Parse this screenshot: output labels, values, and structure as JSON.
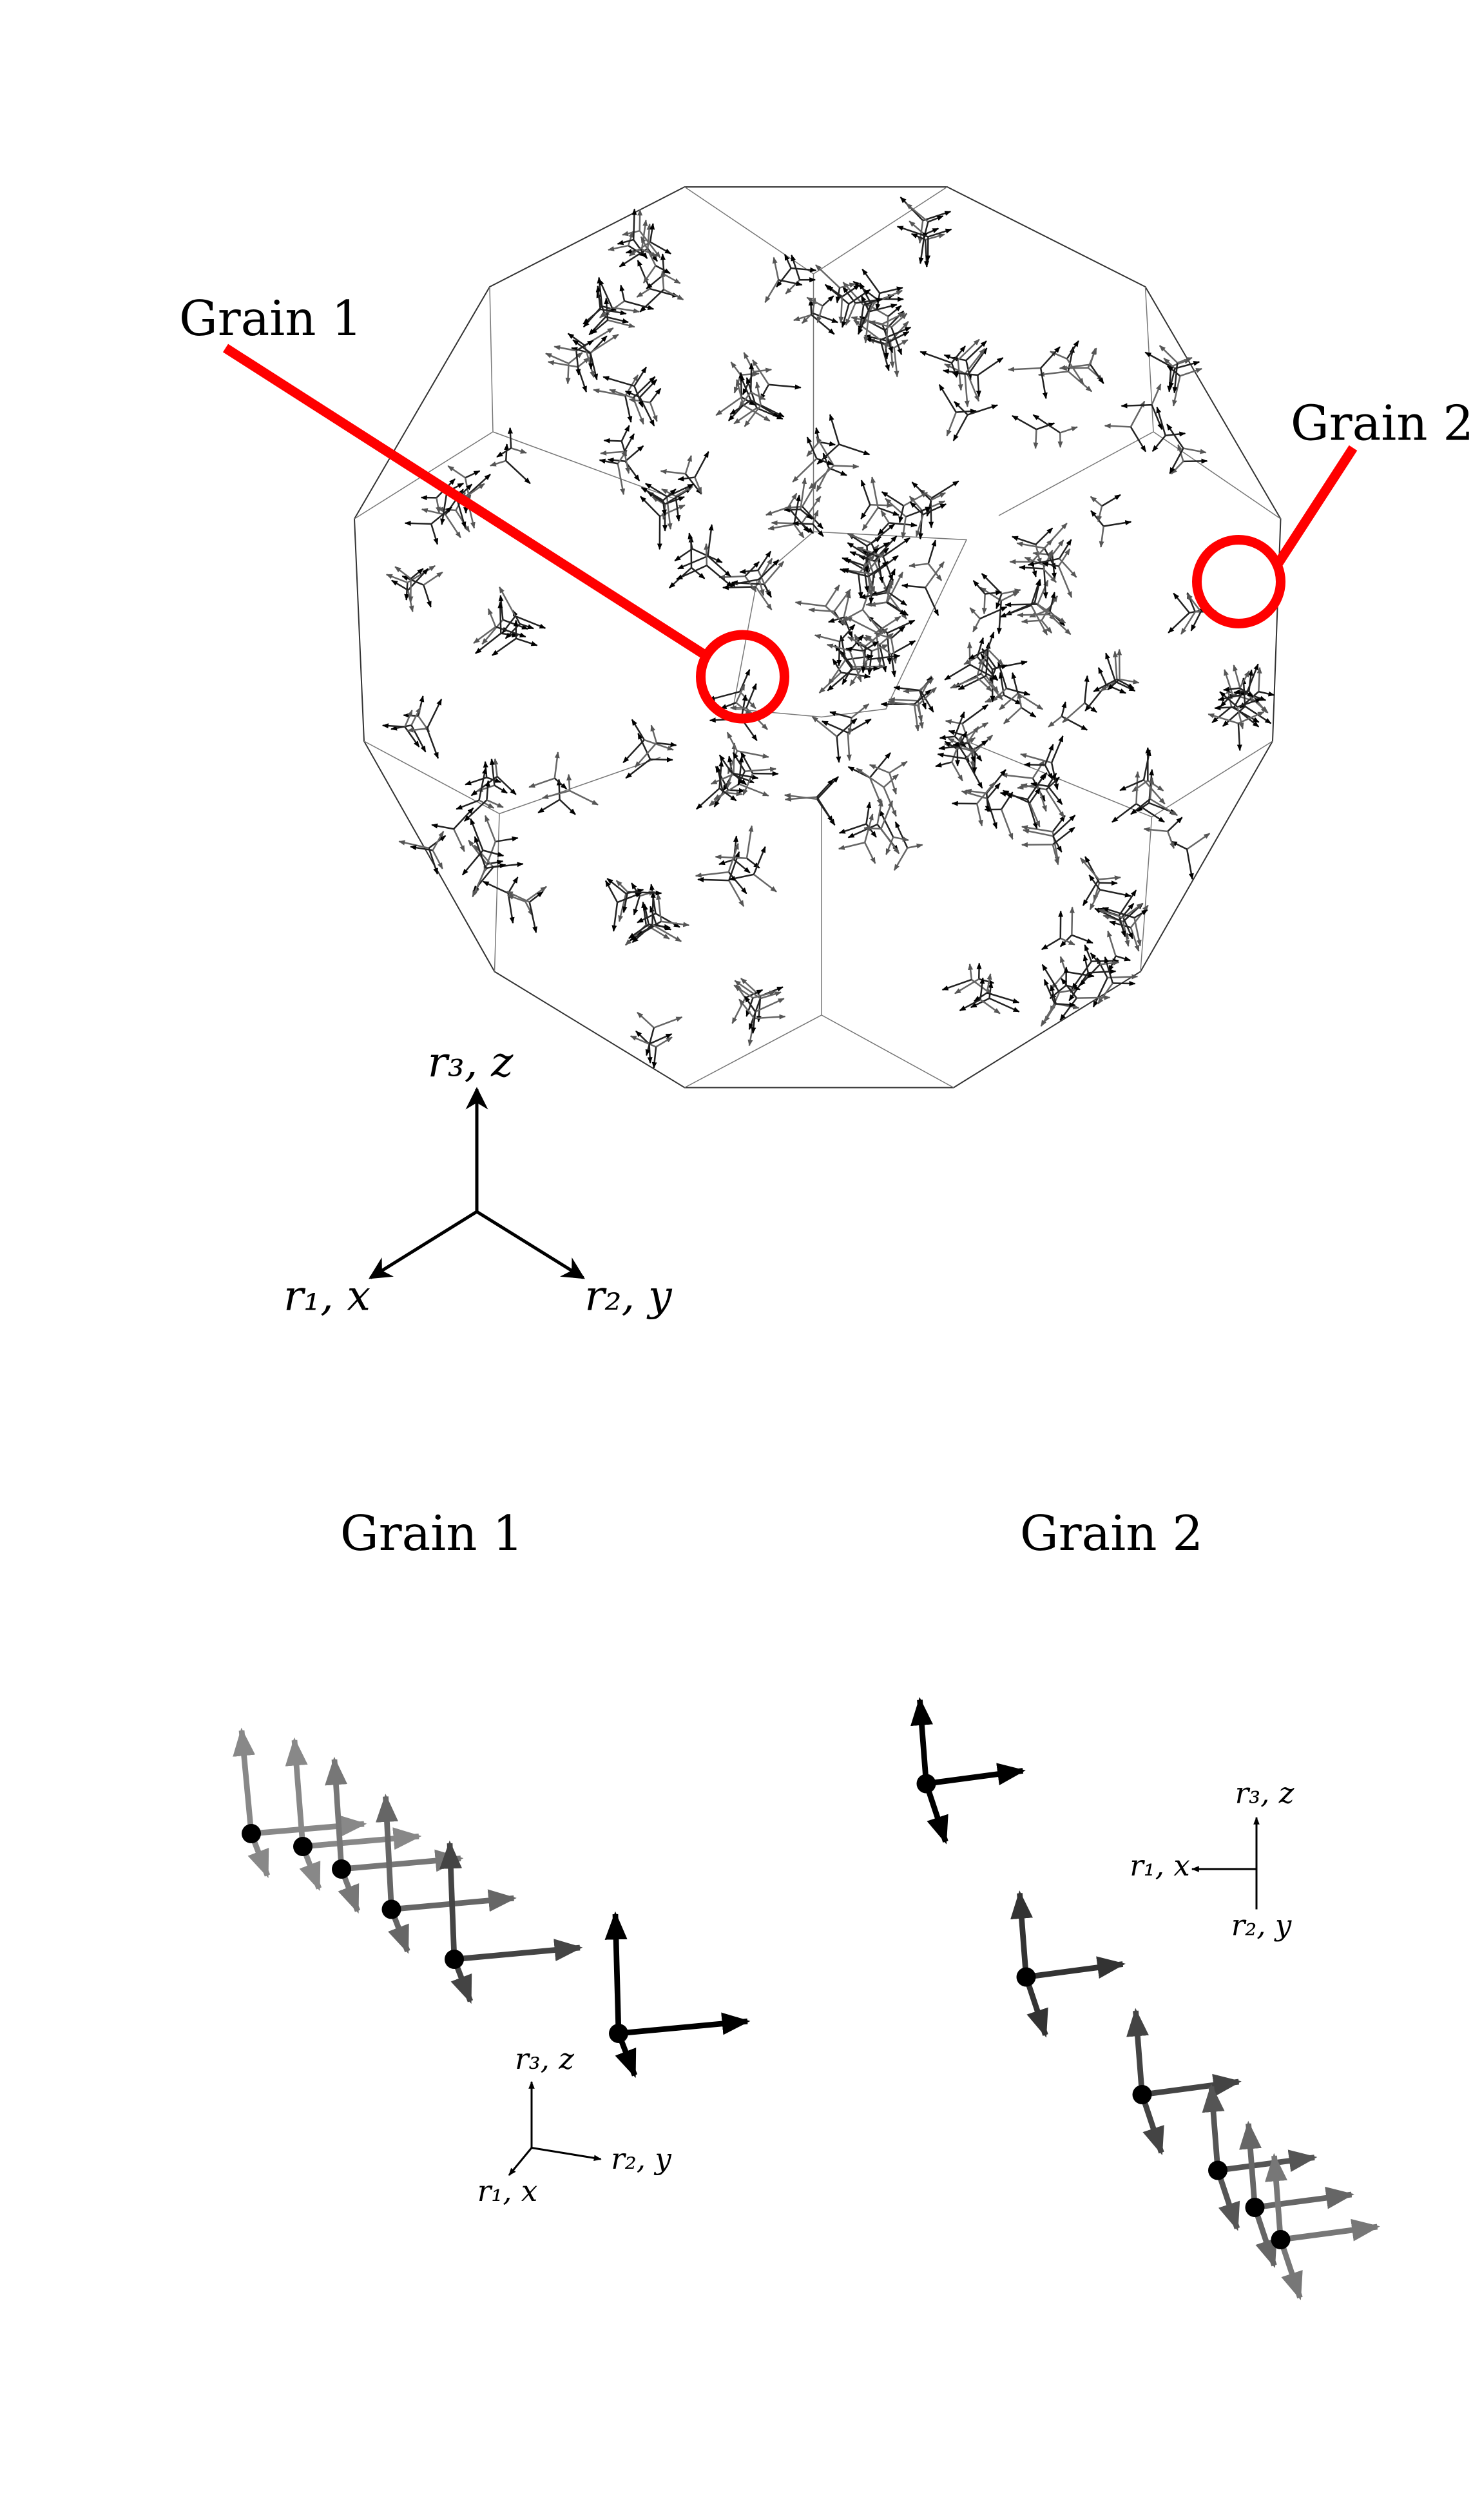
{
  "overview": {
    "callout_1": "Grain 1",
    "callout_2": "Grain 2",
    "axes": {
      "r3": "r₃, z",
      "r1": "r₁, x",
      "r2": "r₂, y"
    }
  },
  "grain_1": {
    "title": "Grain 1",
    "axes": {
      "r3": "r₃, z",
      "r1": "r₁, x",
      "r2": "r₂, y"
    }
  },
  "grain_2": {
    "title": "Grain 2",
    "axes": {
      "r3": "r₃, z",
      "r1": "r₁, x",
      "r2": "r₂, y"
    }
  }
}
